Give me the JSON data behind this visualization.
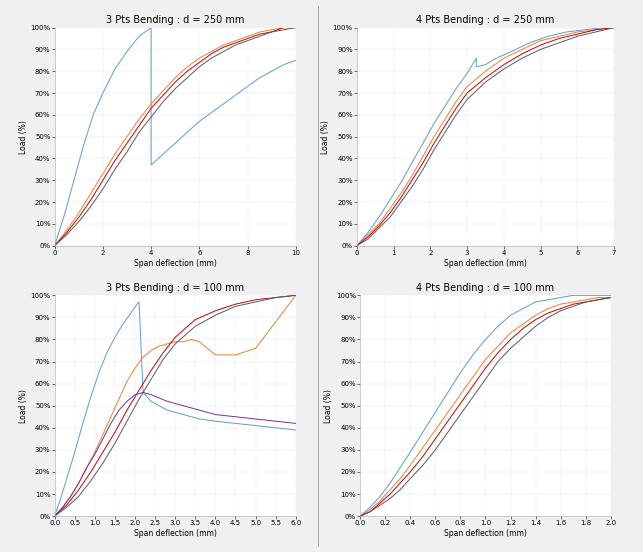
{
  "subplots": [
    {
      "title": "3 Pts Bending : d = 250 mm",
      "xlabel": "Span deflection (mm)",
      "ylabel": "Load (%)",
      "xlim": [
        0,
        10
      ],
      "ylim": [
        0,
        1.0
      ],
      "xticks": [
        0,
        2,
        4,
        6,
        8,
        10
      ],
      "yticks": [
        0.0,
        0.1,
        0.2,
        0.3,
        0.4,
        0.5,
        0.6,
        0.7,
        0.8,
        0.9,
        1.0
      ],
      "curves": [
        {
          "color": "#5b9bd5",
          "x": [
            0,
            0.4,
            0.8,
            1.2,
            1.6,
            2.0,
            2.5,
            3.0,
            3.5,
            4.0,
            4.0,
            4.5,
            5.0,
            5.5,
            6.0,
            6.5,
            7.0,
            7.5,
            8.0,
            8.5,
            9.0,
            9.5,
            10.0
          ],
          "y": [
            0,
            0.14,
            0.3,
            0.46,
            0.6,
            0.7,
            0.81,
            0.89,
            0.96,
            1.0,
            0.37,
            0.42,
            0.47,
            0.52,
            0.57,
            0.61,
            0.65,
            0.69,
            0.73,
            0.77,
            0.8,
            0.83,
            0.85
          ]
        },
        {
          "color": "#ed7d31",
          "x": [
            0,
            0.5,
            1.0,
            1.5,
            2.0,
            2.5,
            3.0,
            3.5,
            4.0,
            4.5,
            5.0,
            5.5,
            6.0,
            6.5,
            7.0,
            7.5,
            8.0,
            8.5,
            9.0,
            9.5,
            10.0
          ],
          "y": [
            0,
            0.07,
            0.15,
            0.24,
            0.33,
            0.42,
            0.5,
            0.58,
            0.65,
            0.71,
            0.77,
            0.82,
            0.86,
            0.89,
            0.92,
            0.94,
            0.96,
            0.98,
            0.99,
            1.0,
            1.0
          ]
        },
        {
          "color": "#c00000",
          "x": [
            0,
            0.5,
            1.0,
            1.5,
            2.0,
            2.5,
            3.0,
            3.5,
            4.0,
            4.5,
            5.0,
            5.5,
            6.0,
            6.5,
            7.0,
            7.5,
            8.0,
            8.5,
            9.0,
            9.5,
            10.0
          ],
          "y": [
            0,
            0.06,
            0.13,
            0.21,
            0.3,
            0.39,
            0.47,
            0.55,
            0.63,
            0.69,
            0.75,
            0.8,
            0.84,
            0.88,
            0.91,
            0.93,
            0.95,
            0.97,
            0.98,
            1.0,
            1.0
          ]
        },
        {
          "color": "#595959",
          "x": [
            0,
            0.5,
            1.0,
            1.5,
            2.0,
            2.5,
            3.0,
            3.5,
            4.0,
            4.5,
            5.0,
            5.5,
            6.0,
            6.5,
            7.0,
            7.5,
            8.0,
            8.5,
            9.0,
            9.5,
            10.0
          ],
          "y": [
            0,
            0.05,
            0.11,
            0.18,
            0.26,
            0.35,
            0.43,
            0.52,
            0.59,
            0.66,
            0.72,
            0.77,
            0.82,
            0.86,
            0.89,
            0.92,
            0.94,
            0.96,
            0.98,
            0.99,
            1.0
          ]
        }
      ]
    },
    {
      "title": "4 Pts Bending : d = 250 mm",
      "xlabel": "Span deflection (mm)",
      "ylabel": "Load (%)",
      "xlim": [
        0,
        7
      ],
      "ylim": [
        0,
        1.0
      ],
      "xticks": [
        0,
        1,
        2,
        3,
        4,
        5,
        6,
        7
      ],
      "yticks": [
        0.0,
        0.1,
        0.2,
        0.3,
        0.4,
        0.5,
        0.6,
        0.7,
        0.8,
        0.9,
        1.0
      ],
      "curves": [
        {
          "color": "#5b9bd5",
          "x": [
            0,
            0.3,
            0.6,
            0.9,
            1.2,
            1.5,
            1.8,
            2.1,
            2.4,
            2.7,
            3.0,
            3.25,
            3.25,
            3.5,
            3.8,
            4.2,
            4.7,
            5.2,
            5.7,
            6.2,
            6.7,
            7.0
          ],
          "y": [
            0,
            0.06,
            0.13,
            0.21,
            0.29,
            0.38,
            0.47,
            0.56,
            0.64,
            0.72,
            0.79,
            0.86,
            0.82,
            0.83,
            0.86,
            0.89,
            0.93,
            0.96,
            0.98,
            0.99,
            1.0,
            1.0
          ]
        },
        {
          "color": "#ed7d31",
          "x": [
            0,
            0.3,
            0.6,
            0.9,
            1.2,
            1.5,
            1.8,
            2.1,
            2.4,
            2.7,
            3.0,
            3.5,
            4.0,
            4.5,
            5.0,
            5.5,
            6.0,
            6.5,
            7.0
          ],
          "y": [
            0,
            0.05,
            0.1,
            0.17,
            0.24,
            0.32,
            0.41,
            0.5,
            0.58,
            0.66,
            0.73,
            0.8,
            0.86,
            0.9,
            0.94,
            0.96,
            0.98,
            0.99,
            1.0
          ]
        },
        {
          "color": "#c00000",
          "x": [
            0,
            0.3,
            0.6,
            0.9,
            1.2,
            1.5,
            1.8,
            2.1,
            2.4,
            2.7,
            3.0,
            3.5,
            4.0,
            4.5,
            5.0,
            5.5,
            6.0,
            6.5,
            7.0
          ],
          "y": [
            0,
            0.04,
            0.09,
            0.15,
            0.22,
            0.3,
            0.38,
            0.47,
            0.55,
            0.63,
            0.7,
            0.77,
            0.83,
            0.88,
            0.92,
            0.95,
            0.97,
            0.99,
            1.0
          ]
        },
        {
          "color": "#595959",
          "x": [
            0,
            0.3,
            0.6,
            0.9,
            1.2,
            1.5,
            1.8,
            2.1,
            2.4,
            2.7,
            3.0,
            3.5,
            4.0,
            4.5,
            5.0,
            5.5,
            6.0,
            6.5,
            7.0
          ],
          "y": [
            0,
            0.03,
            0.08,
            0.13,
            0.2,
            0.27,
            0.35,
            0.44,
            0.52,
            0.6,
            0.67,
            0.75,
            0.81,
            0.86,
            0.9,
            0.93,
            0.96,
            0.98,
            1.0
          ]
        }
      ]
    },
    {
      "title": "3 Pts Bending : d = 100 mm",
      "xlabel": "Span deflection (mm)",
      "ylabel": "Load (%)",
      "xlim": [
        0,
        6
      ],
      "ylim": [
        0,
        1.0
      ],
      "xticks": [
        0,
        0.5,
        1.0,
        1.5,
        2.0,
        2.5,
        3.0,
        3.5,
        4.0,
        4.5,
        5.0,
        5.5,
        6.0
      ],
      "yticks": [
        0.0,
        0.1,
        0.2,
        0.3,
        0.4,
        0.5,
        0.6,
        0.7,
        0.8,
        0.9,
        1.0
      ],
      "curves": [
        {
          "color": "#5b9bd5",
          "x": [
            0,
            0.15,
            0.3,
            0.5,
            0.7,
            0.9,
            1.1,
            1.3,
            1.5,
            1.7,
            1.9,
            2.05,
            2.1,
            2.2,
            2.4,
            2.8,
            3.2,
            3.6,
            4.0,
            4.5,
            5.0,
            5.5,
            6.0
          ],
          "y": [
            0,
            0.08,
            0.17,
            0.29,
            0.42,
            0.54,
            0.65,
            0.74,
            0.81,
            0.87,
            0.92,
            0.96,
            0.97,
            0.56,
            0.52,
            0.48,
            0.46,
            0.44,
            0.43,
            0.42,
            0.41,
            0.4,
            0.39
          ]
        },
        {
          "color": "#ed7d31",
          "x": [
            0,
            0.2,
            0.4,
            0.6,
            0.8,
            1.0,
            1.2,
            1.4,
            1.6,
            1.8,
            2.0,
            2.2,
            2.4,
            2.6,
            2.8,
            3.0,
            3.2,
            3.4,
            3.6,
            3.8,
            4.0,
            4.5,
            5.0,
            5.5,
            6.0
          ],
          "y": [
            0,
            0.04,
            0.09,
            0.15,
            0.22,
            0.29,
            0.37,
            0.45,
            0.53,
            0.61,
            0.67,
            0.72,
            0.75,
            0.77,
            0.78,
            0.79,
            0.79,
            0.8,
            0.79,
            0.76,
            0.73,
            0.73,
            0.76,
            0.88,
            1.0
          ]
        },
        {
          "color": "#c00000",
          "x": [
            0,
            0.3,
            0.6,
            0.9,
            1.2,
            1.5,
            1.8,
            2.1,
            2.4,
            2.7,
            3.0,
            3.5,
            4.0,
            4.5,
            5.0,
            5.5,
            6.0
          ],
          "y": [
            0,
            0.05,
            0.12,
            0.2,
            0.29,
            0.38,
            0.48,
            0.57,
            0.66,
            0.74,
            0.81,
            0.89,
            0.93,
            0.96,
            0.98,
            0.99,
            1.0
          ]
        },
        {
          "color": "#595959",
          "x": [
            0,
            0.3,
            0.6,
            0.9,
            1.2,
            1.5,
            1.8,
            2.1,
            2.4,
            2.7,
            3.0,
            3.5,
            4.0,
            4.5,
            5.0,
            5.5,
            6.0
          ],
          "y": [
            0,
            0.04,
            0.09,
            0.16,
            0.24,
            0.33,
            0.43,
            0.53,
            0.62,
            0.71,
            0.78,
            0.86,
            0.91,
            0.95,
            0.97,
            0.99,
            1.0
          ]
        },
        {
          "color": "#7030a0",
          "x": [
            0,
            0.2,
            0.4,
            0.6,
            0.8,
            1.0,
            1.2,
            1.4,
            1.6,
            1.8,
            2.0,
            2.2,
            2.4,
            2.8,
            3.2,
            3.6,
            4.0,
            4.5,
            5.0,
            5.5,
            6.0
          ],
          "y": [
            0,
            0.04,
            0.09,
            0.15,
            0.22,
            0.28,
            0.35,
            0.42,
            0.48,
            0.52,
            0.55,
            0.56,
            0.55,
            0.52,
            0.5,
            0.48,
            0.46,
            0.45,
            0.44,
            0.43,
            0.42
          ]
        }
      ]
    },
    {
      "title": "4 Pts Bending : d = 100 mm",
      "xlabel": "Span deflection (mm)",
      "ylabel": "Load (%)",
      "xlim": [
        0,
        2
      ],
      "ylim": [
        0,
        1.0
      ],
      "xticks": [
        0,
        0.2,
        0.4,
        0.6,
        0.8,
        1.0,
        1.2,
        1.4,
        1.6,
        1.8,
        2.0
      ],
      "yticks": [
        0.0,
        0.1,
        0.2,
        0.3,
        0.4,
        0.5,
        0.6,
        0.7,
        0.8,
        0.9,
        1.0
      ],
      "curves": [
        {
          "color": "#5b9bd5",
          "x": [
            0,
            0.08,
            0.16,
            0.24,
            0.32,
            0.4,
            0.5,
            0.6,
            0.7,
            0.8,
            0.9,
            1.0,
            1.1,
            1.2,
            1.3,
            1.4,
            1.5,
            1.6,
            1.7,
            1.8,
            2.0
          ],
          "y": [
            0,
            0.04,
            0.09,
            0.15,
            0.22,
            0.29,
            0.38,
            0.47,
            0.56,
            0.65,
            0.73,
            0.8,
            0.86,
            0.91,
            0.94,
            0.97,
            0.98,
            0.99,
            1.0,
            1.0,
            1.0
          ]
        },
        {
          "color": "#ed7d31",
          "x": [
            0,
            0.08,
            0.16,
            0.24,
            0.32,
            0.4,
            0.5,
            0.6,
            0.7,
            0.8,
            0.9,
            1.0,
            1.1,
            1.2,
            1.3,
            1.4,
            1.5,
            1.6,
            1.7,
            1.8,
            1.9,
            2.0
          ],
          "y": [
            0,
            0.03,
            0.07,
            0.12,
            0.17,
            0.23,
            0.31,
            0.39,
            0.47,
            0.55,
            0.63,
            0.71,
            0.77,
            0.83,
            0.87,
            0.91,
            0.94,
            0.96,
            0.97,
            0.98,
            0.99,
            0.99
          ]
        },
        {
          "color": "#c00000",
          "x": [
            0,
            0.08,
            0.16,
            0.24,
            0.32,
            0.4,
            0.5,
            0.6,
            0.7,
            0.8,
            0.9,
            1.0,
            1.1,
            1.2,
            1.3,
            1.4,
            1.5,
            1.6,
            1.7,
            1.8,
            1.9,
            2.0
          ],
          "y": [
            0,
            0.02,
            0.06,
            0.1,
            0.15,
            0.2,
            0.27,
            0.35,
            0.43,
            0.51,
            0.59,
            0.67,
            0.74,
            0.8,
            0.85,
            0.89,
            0.92,
            0.94,
            0.96,
            0.97,
            0.98,
            0.99
          ]
        },
        {
          "color": "#595959",
          "x": [
            0,
            0.08,
            0.16,
            0.24,
            0.32,
            0.4,
            0.5,
            0.6,
            0.7,
            0.8,
            0.9,
            1.0,
            1.1,
            1.2,
            1.3,
            1.4,
            1.5,
            1.6,
            1.7,
            1.8,
            1.9,
            2.0
          ],
          "y": [
            0,
            0.02,
            0.05,
            0.08,
            0.12,
            0.17,
            0.23,
            0.3,
            0.38,
            0.46,
            0.54,
            0.62,
            0.7,
            0.76,
            0.81,
            0.86,
            0.9,
            0.93,
            0.95,
            0.97,
            0.98,
            0.99
          ]
        }
      ]
    }
  ],
  "figure_bg": "#f0f0f0",
  "axes_bg": "#ffffff",
  "grid_color": "#d0d0d0",
  "tick_fontsize": 5,
  "label_fontsize": 5.5,
  "title_fontsize": 7,
  "line_width": 0.7,
  "divider_color": "#999999"
}
